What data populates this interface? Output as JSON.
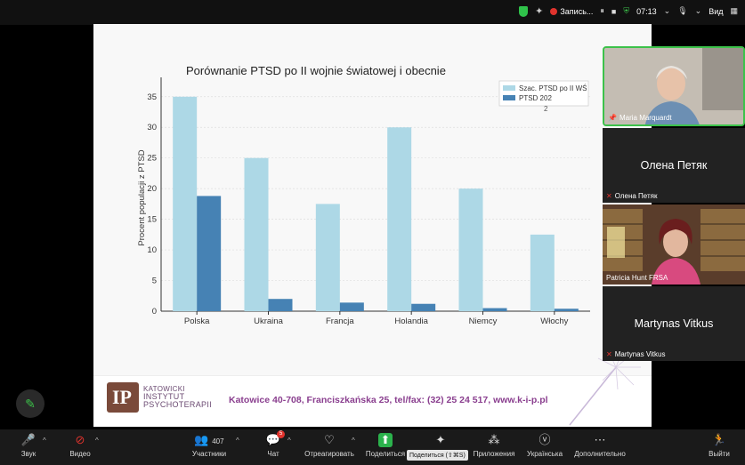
{
  "status_bar": {
    "recording": "Запись...",
    "time": "07:13",
    "view": "Вид"
  },
  "slide": {
    "footer": {
      "logo_line1": "KATOWICKI",
      "logo_line2": "INSTYTUT",
      "logo_line3": "PSYCHOTERAPII",
      "address": "Katowice 40-708,  Franciszkańska 25,  tel/fax: (32) 25 24 517,   www.k-i-p.pl"
    }
  },
  "chart_data": {
    "type": "bar",
    "title": "Porównanie PTSD po II wojnie światowej i obecnie",
    "xlabel": "",
    "ylabel": "Procent populacji z PTSD",
    "categories": [
      "Polska",
      "Ukraina",
      "Francja",
      "Holandia",
      "Niemcy",
      "Włochy"
    ],
    "series": [
      {
        "name": "Szac. PTSD po II WŚ",
        "values": [
          35,
          25,
          17.5,
          30,
          20,
          12.5
        ],
        "color": "#add8e6"
      },
      {
        "name": "PTSD  202\n2",
        "values": [
          18.8,
          2,
          1.4,
          1.2,
          0.5,
          0.4
        ],
        "color": "#4682b4"
      }
    ],
    "ylim": [
      0,
      37
    ],
    "yticks": [
      0,
      5,
      10,
      15,
      20,
      25,
      30,
      35
    ],
    "grid": true,
    "legend": "top-right"
  },
  "participants": [
    {
      "name": "Maria Marquardt",
      "video": true
    },
    {
      "name": "Олена Петяк",
      "video": false,
      "display": "Олена Петяк"
    },
    {
      "name": "Patricia Hunt FRSA",
      "video": true
    },
    {
      "name": "Martynas Vitkus",
      "video": false,
      "display": "Martynas Vitkus"
    }
  ],
  "toolbar": {
    "audio": "Звук",
    "video": "Видео",
    "participants": "Участники",
    "participants_count": "407",
    "chat": "Чат",
    "chat_badge": "5",
    "react": "Отреагировать",
    "share": "Поделиться",
    "share_tooltip": "Поделиться (⇧⌘S)",
    "apps": "Приложения",
    "lang": "Українська",
    "more": "Дополнительно",
    "exit": "Выйти"
  }
}
